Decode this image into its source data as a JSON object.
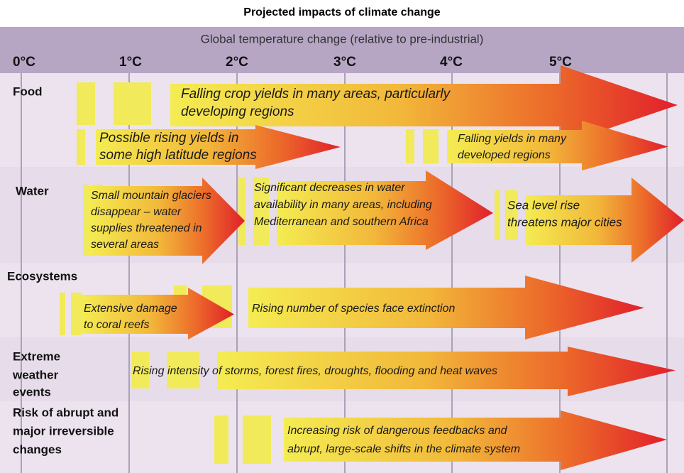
{
  "title": "Projected impacts of climate change",
  "axis": {
    "label": "Global temperature change (relative to pre-industrial)",
    "ticks": [
      "0°C",
      "1°C",
      "2°C",
      "3°C",
      "4°C",
      "5°C"
    ]
  },
  "rows": [
    {
      "label": [
        "Food"
      ],
      "impacts": [
        {
          "lines": [
            "Falling crop yields in many areas, particularly",
            "developing regions"
          ]
        },
        {
          "lines": [
            "Possible rising yields in",
            "some high latitude regions"
          ]
        },
        {
          "lines": [
            "Falling yields in many",
            "developed regions"
          ]
        }
      ]
    },
    {
      "label": [
        "Water"
      ],
      "impacts": [
        {
          "lines": [
            "Small mountain glaciers",
            "disappear – water",
            "supplies threatened in",
            "several areas"
          ]
        },
        {
          "lines": [
            "Significant decreases in water",
            "availability in many areas, including",
            "Mediterranean and southern Africa"
          ]
        },
        {
          "lines": [
            "Sea level rise",
            "threatens major cities"
          ]
        }
      ]
    },
    {
      "label": [
        "Ecosystems"
      ],
      "impacts": [
        {
          "lines": [
            "Extensive damage",
            "to coral reefs"
          ]
        },
        {
          "lines": [
            "Rising number of species face extinction"
          ]
        }
      ]
    },
    {
      "label": [
        "Extreme",
        "weather",
        "events"
      ],
      "impacts": [
        {
          "lines": [
            "Rising intensity of storms, forest fires, droughts, flooding and heat waves"
          ]
        }
      ]
    },
    {
      "label": [
        "Risk of abrupt and",
        "major irreversible",
        "changes"
      ],
      "impacts": [
        {
          "lines": [
            "Increasing risk of dangerous feedbacks and",
            "abrupt, large-scale shifts in the climate system"
          ]
        }
      ]
    }
  ]
}
